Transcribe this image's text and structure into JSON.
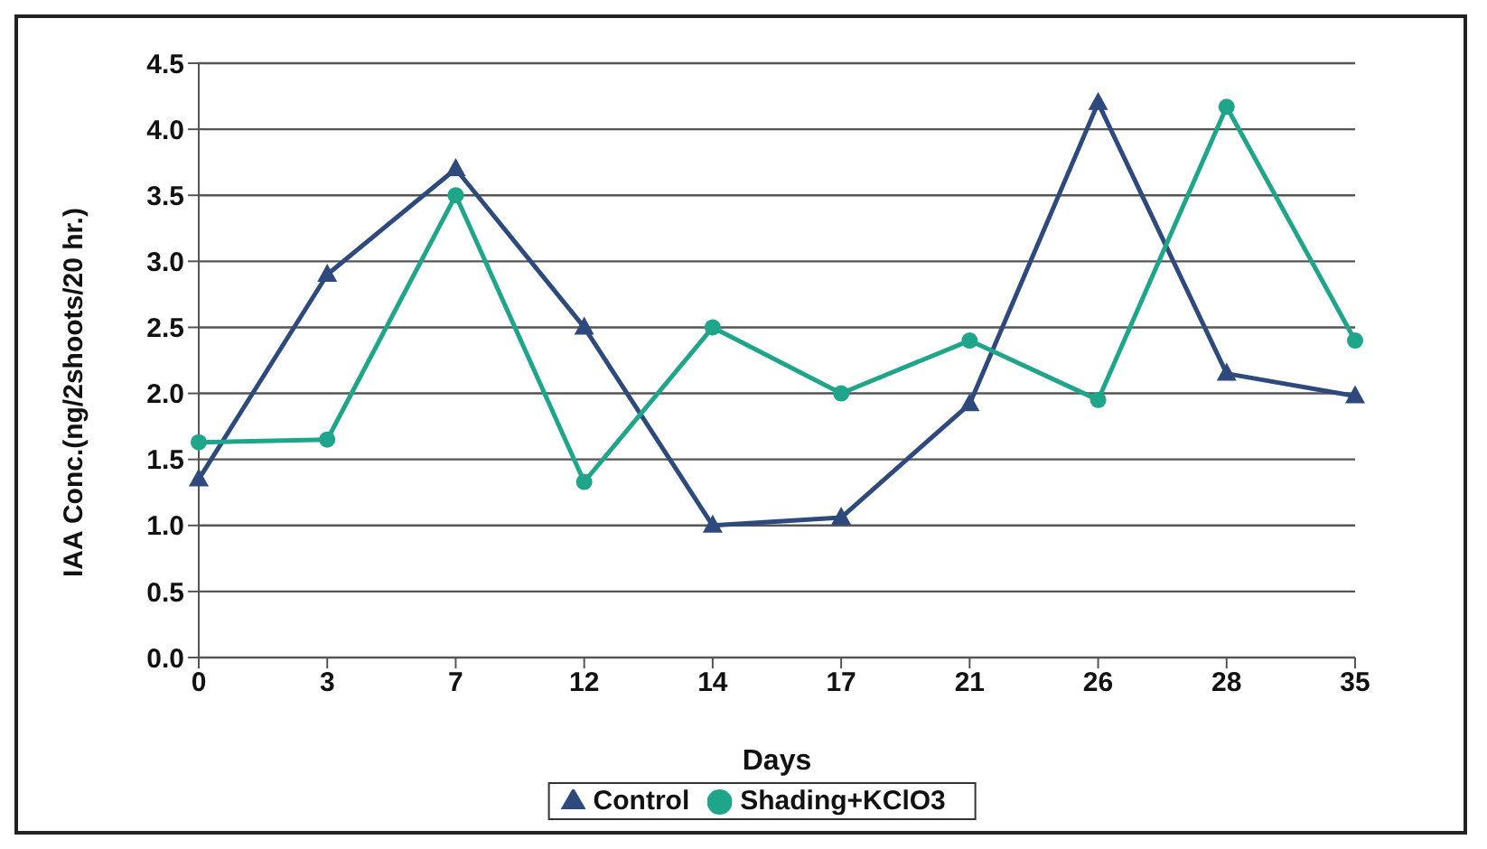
{
  "chart_data": {
    "type": "line",
    "xlabel": "Days",
    "ylabel": "IAA Conc.(ng/2shoots/20 hr.)",
    "categories": [
      "0",
      "3",
      "7",
      "12",
      "14",
      "17",
      "21",
      "26",
      "28",
      "35"
    ],
    "series": [
      {
        "name": "Control",
        "color": "#2e4a7d",
        "marker": "triangle",
        "values": [
          1.35,
          2.9,
          3.7,
          2.5,
          1.0,
          1.06,
          1.92,
          4.2,
          2.15,
          1.98
        ]
      },
      {
        "name": "Shading+KClO3",
        "color": "#1fa58a",
        "marker": "circle",
        "values": [
          1.63,
          1.65,
          3.5,
          1.33,
          2.5,
          2.0,
          2.4,
          1.95,
          4.17,
          2.4
        ]
      }
    ],
    "ylim": [
      0,
      4.5
    ],
    "yticks": [
      {
        "value": 0,
        "label": "0.0"
      },
      {
        "value": 0.5,
        "label": "0.5"
      },
      {
        "value": 1,
        "label": "1.0"
      },
      {
        "value": 1.5,
        "label": "1.5"
      },
      {
        "value": 2,
        "label": "2.0"
      },
      {
        "value": 2.5,
        "label": "2.5"
      },
      {
        "value": 3,
        "label": "3.0"
      },
      {
        "value": 3.5,
        "label": "3.5"
      },
      {
        "value": 4,
        "label": "4.0"
      },
      {
        "value": 4.5,
        "label": "4.5"
      }
    ],
    "grid": "y",
    "legend": "bottom"
  }
}
